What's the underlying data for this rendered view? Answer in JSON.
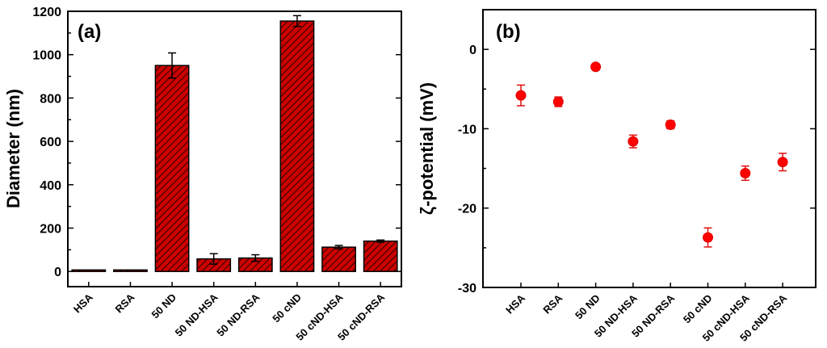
{
  "chart_data": [
    {
      "type": "bar",
      "panel_label": "(a)",
      "title": "",
      "xlabel": "",
      "ylabel": "Diameter (nm)",
      "ylim": [
        -70,
        1200
      ],
      "yticks": [
        0,
        200,
        400,
        600,
        800,
        1000,
        1200
      ],
      "categories": [
        "HSA",
        "RSA",
        "50 ND",
        "50 ND-HSA",
        "50 ND-RSA",
        "50 cND",
        "50 cND-HSA",
        "50 cND-RSA"
      ],
      "values": [
        7,
        7,
        950,
        58,
        62,
        1155,
        112,
        140
      ],
      "errors": [
        0,
        0,
        58,
        24,
        15,
        25,
        8,
        5
      ],
      "colors": {
        "bar": "#cc0000",
        "hatch": "#000000"
      }
    },
    {
      "type": "scatter",
      "panel_label": "(b)",
      "title": "",
      "xlabel": "",
      "ylabel": "ζ-potential (mV)",
      "ylim": [
        -30,
        5
      ],
      "yticks": [
        0,
        -10,
        -20,
        -30
      ],
      "categories": [
        "HSA",
        "RSA",
        "50 ND",
        "50 ND-HSA",
        "50 ND-RSA",
        "50 cND",
        "50 cND-HSA",
        "50 cND-RSA"
      ],
      "values": [
        -5.8,
        -6.6,
        -2.2,
        -11.6,
        -9.5,
        -23.7,
        -15.6,
        -14.2
      ],
      "errors": [
        1.3,
        0.6,
        0.3,
        0.8,
        0.5,
        1.2,
        0.9,
        1.1
      ],
      "colors": {
        "marker": "#ff0000"
      }
    }
  ]
}
